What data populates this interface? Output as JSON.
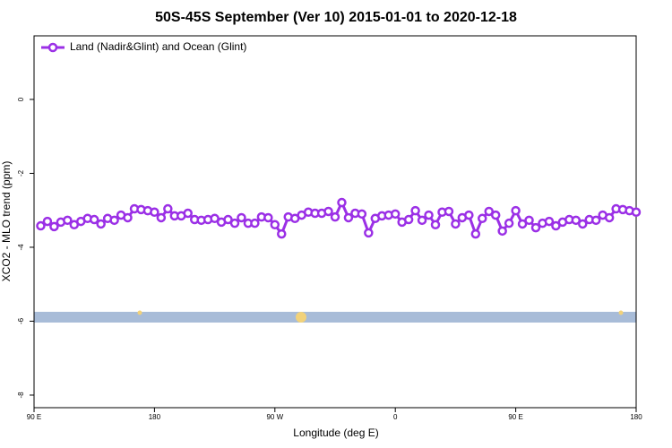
{
  "chart_data": {
    "type": "line",
    "title": "50S-45S September (Ver 10)   2015-01-01 to 2020-12-18",
    "x_label": "Longitude (deg E)",
    "y_label": "XCO2 - MLO trend (ppm)",
    "xlim": [
      90,
      540
    ],
    "ylim": [
      -8.34,
      1.72
    ],
    "xticks": [
      {
        "value": 90,
        "label": "90 E"
      },
      180,
      {
        "value": 270,
        "label": "90 W"
      },
      {
        "value": 360,
        "label": "0"
      },
      {
        "value": 450,
        "label": "90 E"
      },
      {
        "value": 540,
        "label": "180"
      }
    ],
    "yticks": [
      0,
      -2,
      -4,
      -6,
      -8
    ],
    "legend": "top-left",
    "x": [
      95,
      100,
      105,
      110,
      115,
      120,
      125,
      130,
      135,
      140,
      145,
      150,
      155,
      160,
      165,
      170,
      175,
      180,
      185,
      190,
      195,
      200,
      205,
      210,
      215,
      220,
      225,
      230,
      235,
      240,
      245,
      250,
      255,
      260,
      265,
      270,
      275,
      280,
      285,
      290,
      295,
      300,
      305,
      310,
      315,
      320,
      325,
      330,
      335,
      340,
      345,
      350,
      355,
      360,
      365,
      370,
      375,
      380,
      385,
      390,
      395,
      400,
      405,
      410,
      415,
      420,
      425,
      430,
      435,
      440,
      445,
      450,
      455,
      460,
      465,
      470,
      475,
      480,
      485,
      490,
      495,
      500,
      505,
      510,
      515,
      520,
      525,
      530,
      535,
      540
    ],
    "series": [
      {
        "name": "Land (Nadir&Glint) and Ocean (Glint)",
        "color": "#9b30e6",
        "values": [
          -3.42,
          -3.3,
          -3.44,
          -3.32,
          -3.27,
          -3.39,
          -3.3,
          -3.22,
          -3.25,
          -3.37,
          -3.22,
          -3.27,
          -3.13,
          -3.2,
          -2.96,
          -2.98,
          -3.01,
          -3.05,
          -3.2,
          -2.96,
          -3.15,
          -3.15,
          -3.08,
          -3.25,
          -3.27,
          -3.25,
          -3.22,
          -3.32,
          -3.25,
          -3.35,
          -3.2,
          -3.35,
          -3.35,
          -3.18,
          -3.2,
          -3.39,
          -3.64,
          -3.18,
          -3.22,
          -3.13,
          -3.05,
          -3.08,
          -3.08,
          -3.03,
          -3.18,
          -2.79,
          -3.2,
          -3.08,
          -3.1,
          -3.61,
          -3.22,
          -3.15,
          -3.13,
          -3.1,
          -3.32,
          -3.25,
          -3.01,
          -3.27,
          -3.13,
          -3.39,
          -3.05,
          -3.03,
          -3.37,
          -3.2,
          -3.13,
          -3.64,
          -3.22,
          -3.03,
          -3.13,
          -3.56,
          -3.35,
          -3.01,
          -3.37,
          -3.27,
          -3.47,
          -3.35,
          -3.3,
          -3.42,
          -3.32,
          -3.25,
          -3.27,
          -3.37,
          -3.25,
          -3.27,
          -3.13,
          -3.2,
          -2.96,
          -2.98,
          -3.01,
          -3.05
        ]
      }
    ]
  }
}
